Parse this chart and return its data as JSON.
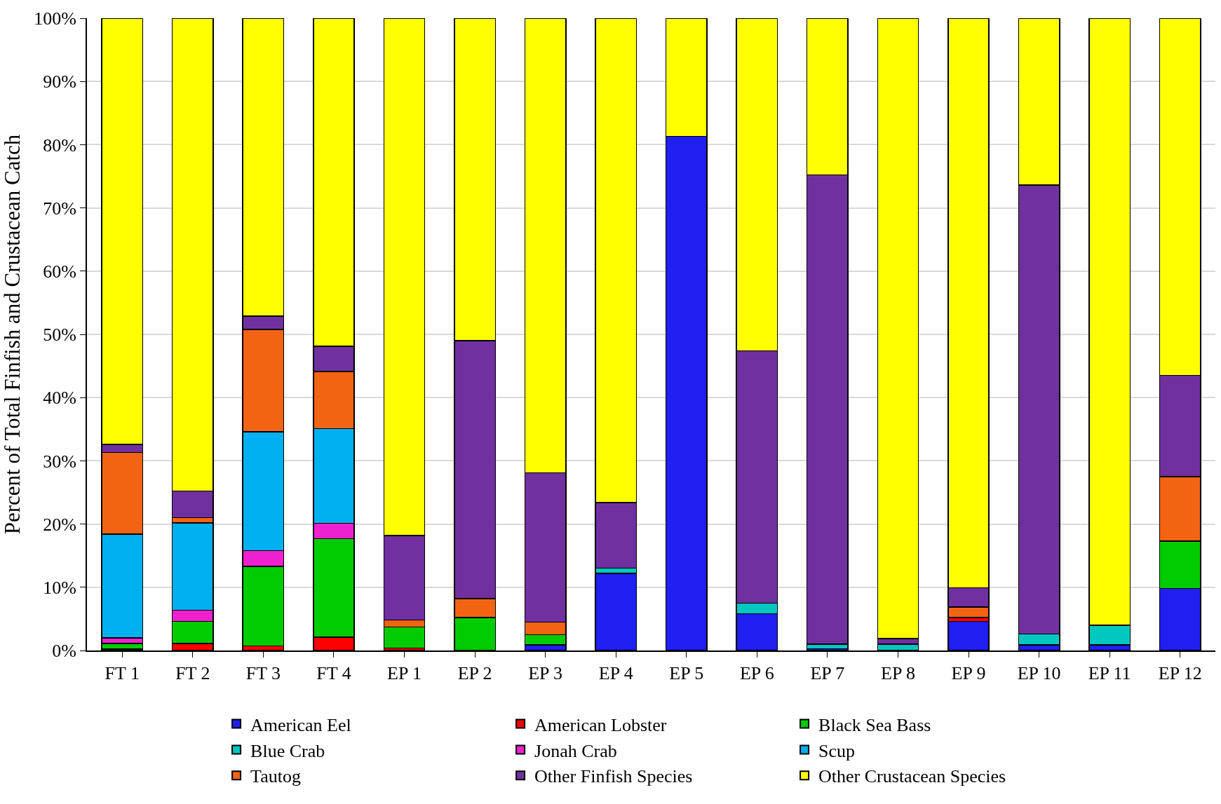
{
  "chart_data": {
    "type": "bar",
    "stacked": true,
    "ylabel": "Percent of Total Finfish and Crustacean Catch",
    "categories": [
      "FT 1",
      "FT 2",
      "FT 3",
      "FT 4",
      "EP 1",
      "EP 2",
      "EP 3",
      "EP 4",
      "EP 5",
      "EP 6",
      "EP 7",
      "EP 8",
      "EP 9",
      "EP 10",
      "EP 11",
      "EP 12"
    ],
    "series": [
      {
        "name": "American Eel",
        "color": "#1f1fef",
        "values": [
          0.1,
          0,
          0,
          0,
          0,
          0,
          0.9,
          12.2,
          81.3,
          5.8,
          0.3,
          0,
          4.6,
          0.9,
          0.9,
          9.8
        ]
      },
      {
        "name": "American Lobster",
        "color": "#ff0000",
        "values": [
          0.1,
          1.1,
          0.7,
          2.1,
          0.4,
          0,
          0,
          0,
          0,
          0,
          0,
          0,
          0.6,
          0,
          0,
          0
        ]
      },
      {
        "name": "Black Sea Bass",
        "color": "#00cc00",
        "values": [
          0.9,
          3.5,
          12.6,
          15.6,
          3.3,
          5.2,
          1.6,
          0,
          0,
          0,
          0,
          0,
          0,
          0,
          0,
          7.5
        ]
      },
      {
        "name": "Blue Crab",
        "color": "#00c8c0",
        "values": [
          0,
          0,
          0,
          0,
          0,
          0,
          0,
          0.8,
          0,
          1.7,
          0.7,
          1.0,
          0,
          1.7,
          3.1,
          0
        ]
      },
      {
        "name": "Jonah Crab",
        "color": "#f020d0",
        "values": [
          0.9,
          1.8,
          2.5,
          2.4,
          0,
          0,
          0,
          0,
          0,
          0,
          0,
          0,
          0,
          0,
          0,
          0
        ]
      },
      {
        "name": "Scup",
        "color": "#00b0f0",
        "values": [
          16.4,
          13.8,
          18.8,
          15.0,
          0,
          0,
          0,
          0,
          0,
          0,
          0,
          0,
          0,
          0,
          0,
          0
        ]
      },
      {
        "name": "Tautog",
        "color": "#f26414",
        "values": [
          12.9,
          0.8,
          16.2,
          9.0,
          1.1,
          3.0,
          2.0,
          0,
          0,
          0,
          0,
          0,
          1.7,
          0,
          0,
          10.2
        ]
      },
      {
        "name": "Other Finfish Species",
        "color": "#7030a0",
        "values": [
          1.3,
          4.2,
          2.1,
          4.0,
          13.4,
          40.8,
          23.6,
          10.4,
          0,
          39.9,
          74.2,
          0.9,
          3.0,
          71.0,
          0,
          16.0
        ]
      },
      {
        "name": "Other Crustacean Species",
        "color": "#ffff00",
        "values": [
          67.4,
          74.8,
          47.1,
          51.9,
          81.8,
          51.0,
          71.9,
          76.6,
          18.7,
          52.6,
          24.8,
          98.1,
          90.1,
          26.4,
          96.0,
          56.5
        ]
      }
    ],
    "ylim": [
      0,
      100
    ],
    "yticks": [
      {
        "value": 0,
        "label": "0%"
      },
      {
        "value": 10,
        "label": "10%"
      },
      {
        "value": 20,
        "label": "20%"
      },
      {
        "value": 30,
        "label": "30%"
      },
      {
        "value": 40,
        "label": "40%"
      },
      {
        "value": 50,
        "label": "50%"
      },
      {
        "value": 60,
        "label": "60%"
      },
      {
        "value": 70,
        "label": "70%"
      },
      {
        "value": 80,
        "label": "80%"
      },
      {
        "value": 90,
        "label": "90%"
      },
      {
        "value": 100,
        "label": "100%"
      }
    ],
    "grid": "y",
    "legend": "bottom"
  }
}
